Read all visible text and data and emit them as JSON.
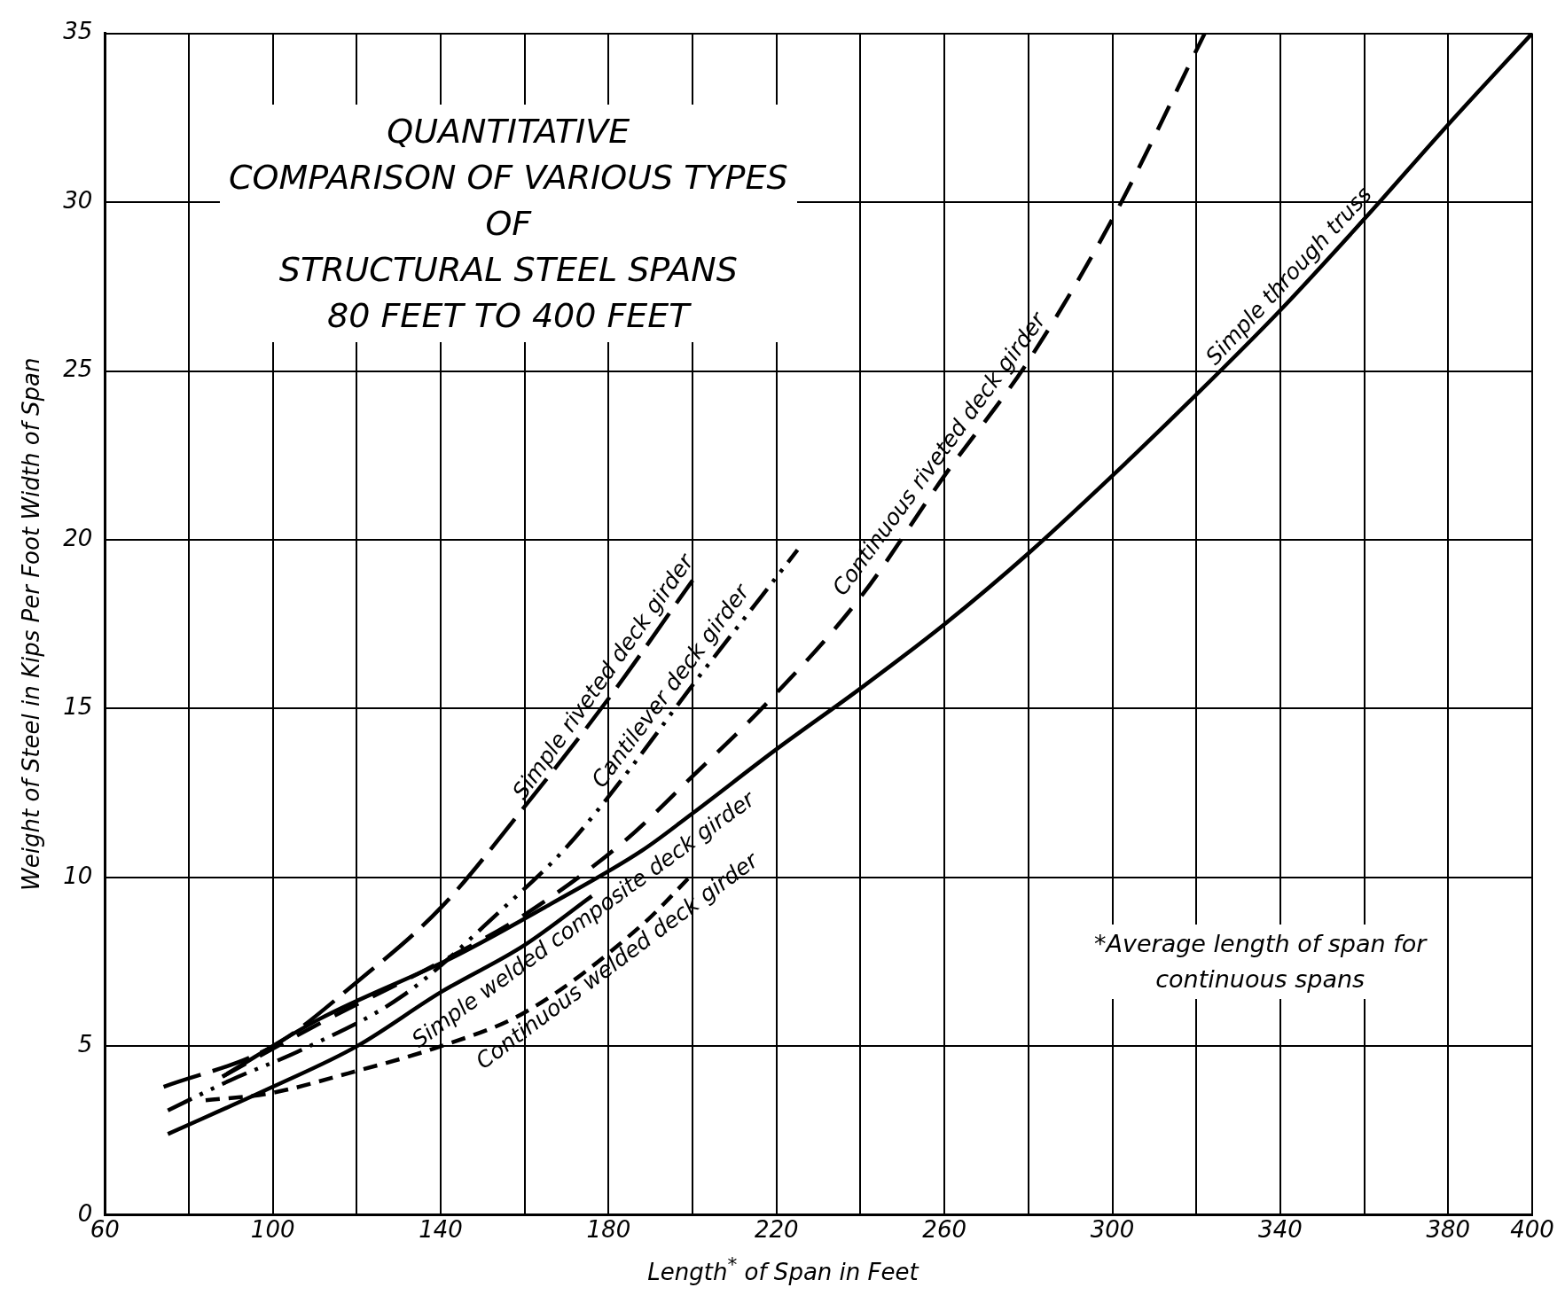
{
  "chart_data": {
    "type": "line",
    "title": "QUANTITATIVE\nCOMPARISON OF VARIOUS TYPES\nOF\nSTRUCTURAL STEEL SPANS\n80 FEET TO 400 FEET",
    "xlabel": "Length$^{*}$ of Span in Feet",
    "ylabel": "Weight of Steel in Kips Per Foot Width of Span",
    "annotations": [
      "*Average length of span for\ncontinuous spans"
    ],
    "xlim": [
      60,
      400
    ],
    "xticks": [
      60,
      {
        "value": 80,
        "label": null
      },
      100,
      {
        "value": 120,
        "label": null
      },
      140,
      {
        "value": 160,
        "label": null
      },
      180,
      {
        "value": 200,
        "label": null
      },
      220,
      {
        "value": 240,
        "label": null
      },
      260,
      {
        "value": 280,
        "label": null
      },
      300,
      {
        "value": 320,
        "label": null
      },
      340,
      {
        "value": 360,
        "label": null
      },
      380,
      400
    ],
    "ylim": [
      0,
      35
    ],
    "yticks": [
      0,
      5,
      10,
      15,
      20,
      25,
      30,
      35
    ],
    "grid": true,
    "marker": "none",
    "series": [
      {
        "name": "Simple through truss",
        "color": "#000000",
        "line_style": "solid",
        "x": [
          88,
          111,
          144,
          166,
          188,
          200,
          220,
          240,
          260,
          280,
          300,
          320,
          340,
          360,
          380,
          400
        ],
        "values": [
          4.1,
          5.8,
          7.7,
          9.2,
          10.8,
          11.9,
          13.8,
          15.6,
          17.5,
          19.6,
          21.9,
          24.3,
          26.8,
          29.5,
          32.3,
          35
        ]
      },
      {
        "name": "Continuous riveted deck girder",
        "color": "#000000",
        "line_style": "dashed",
        "x": [
          88,
          110,
          140,
          160,
          184,
          200,
          218,
          240,
          260,
          280,
          300,
          322
        ],
        "values": [
          4.1,
          5.6,
          7.5,
          8.9,
          11.1,
          13.0,
          15.2,
          18.3,
          21.9,
          25.3,
          29.5,
          35
        ]
      },
      {
        "name": "Simple riveted deck girder",
        "color": "#000000",
        "line_style": "dashed",
        "x": [
          74,
          100,
          120,
          140,
          160,
          180,
          200
        ],
        "values": [
          3.8,
          5.0,
          6.9,
          9.1,
          12.1,
          15.3,
          18.8
        ]
      },
      {
        "name": "Cantilever deck girder",
        "color": "#000000",
        "line_style": "dashed",
        "x": [
          75,
          90,
          107,
          131,
          155,
          170,
          185,
          200,
          215,
          225
        ],
        "values": [
          3.1,
          4.0,
          4.9,
          6.5,
          9.1,
          10.9,
          13.2,
          15.7,
          18.1,
          19.7
        ]
      },
      {
        "name": "Simple welded composite deck girder",
        "color": "#000000",
        "line_style": "solid",
        "x": [
          75,
          100,
          120,
          140,
          160,
          176
        ],
        "values": [
          2.4,
          3.8,
          5.0,
          6.6,
          8.0,
          9.45
        ]
      },
      {
        "name": "Continuous welded deck girder",
        "color": "#000000",
        "line_style": "dashed",
        "x": [
          84,
          99,
          118,
          140,
          160,
          188,
          200
        ],
        "values": [
          3.4,
          3.6,
          4.2,
          5.0,
          6.0,
          8.6,
          10.1
        ]
      }
    ]
  }
}
